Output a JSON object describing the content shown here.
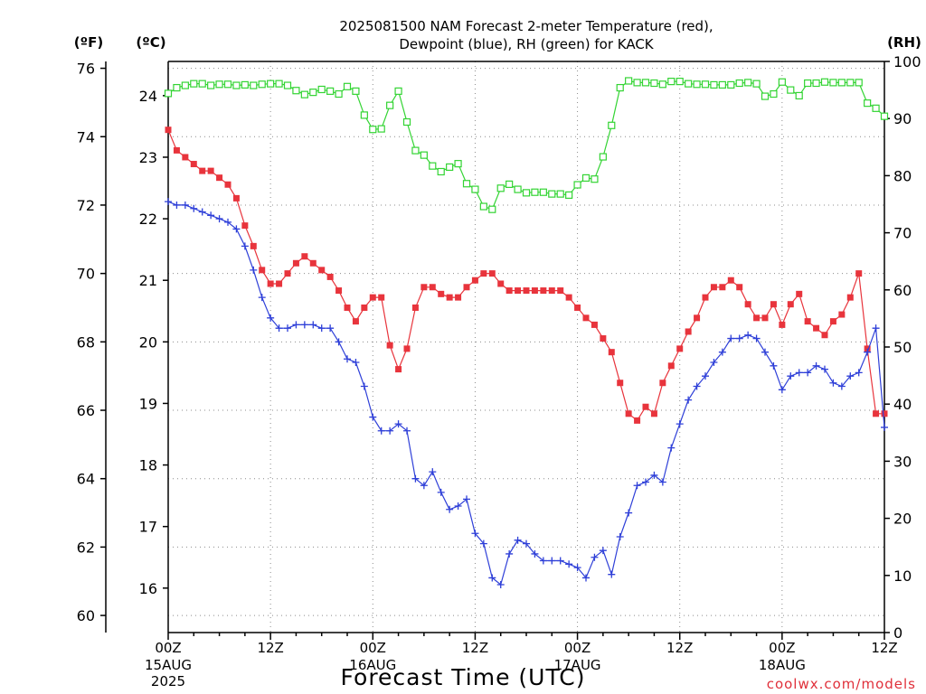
{
  "chart_data": {
    "type": "line",
    "title_line1": "2025081500 NAM Forecast 2-meter Temperature (red),",
    "title_line2": "Dewpoint (blue), RH (green) for KACK",
    "xlabel": "Forecast Time (UTC)",
    "credit": "coolwx.com/models",
    "left_outer_axis": {
      "unit": "(ºF)",
      "ticks": [
        60,
        62,
        64,
        66,
        68,
        70,
        72,
        74,
        76
      ]
    },
    "left_inner_axis": {
      "unit": "(ºC)",
      "ticks": [
        16,
        17,
        18,
        19,
        20,
        21,
        22,
        23,
        24
      ]
    },
    "right_axis": {
      "unit": "(RH)",
      "ticks": [
        0,
        10,
        20,
        30,
        40,
        50,
        60,
        70,
        80,
        90,
        100
      ],
      "ylim": [
        0,
        100
      ]
    },
    "ylim_f": [
      59.5,
      76.2
    ],
    "x_range_hours": [
      0,
      84
    ],
    "x_step_hours": 1,
    "x_ticks": [
      {
        "hour": 0,
        "label": "00Z",
        "sub1": "15AUG",
        "sub2": "2025"
      },
      {
        "hour": 12,
        "label": "12Z",
        "sub1": "",
        "sub2": ""
      },
      {
        "hour": 24,
        "label": "00Z",
        "sub1": "16AUG",
        "sub2": ""
      },
      {
        "hour": 36,
        "label": "12Z",
        "sub1": "",
        "sub2": ""
      },
      {
        "hour": 48,
        "label": "00Z",
        "sub1": "17AUG",
        "sub2": ""
      },
      {
        "hour": 60,
        "label": "12Z",
        "sub1": "",
        "sub2": ""
      },
      {
        "hour": 72,
        "label": "00Z",
        "sub1": "18AUG",
        "sub2": ""
      },
      {
        "hour": 84,
        "label": "12Z",
        "sub1": "",
        "sub2": ""
      }
    ],
    "grid": true,
    "series": [
      {
        "name": "Temperature",
        "unit": "F",
        "color": "#e8343c",
        "marker": "filled-square",
        "values": [
          74.2,
          73.6,
          73.4,
          73.2,
          73.0,
          73.0,
          72.8,
          72.6,
          72.2,
          71.4,
          70.8,
          70.1,
          69.7,
          69.7,
          70.0,
          70.3,
          70.5,
          70.3,
          70.1,
          69.9,
          69.5,
          69.0,
          68.6,
          69.0,
          69.3,
          69.3,
          67.9,
          67.2,
          67.8,
          69.0,
          69.6,
          69.6,
          69.4,
          69.3,
          69.3,
          69.6,
          69.8,
          70.0,
          70.0,
          69.7,
          69.5,
          69.5,
          69.5,
          69.5,
          69.5,
          69.5,
          69.5,
          69.3,
          69.0,
          68.7,
          68.5,
          68.1,
          67.7,
          66.8,
          65.9,
          65.7,
          66.1,
          65.9,
          66.8,
          67.3,
          67.8,
          68.3,
          68.7,
          69.3,
          69.6,
          69.6,
          69.8,
          69.6,
          69.1,
          68.7,
          68.7,
          69.1,
          68.5,
          69.1,
          69.4,
          68.6,
          68.4,
          68.2,
          68.6,
          68.8,
          69.3,
          70.0,
          67.8,
          65.9,
          65.9
        ]
      },
      {
        "name": "Dewpoint",
        "unit": "F",
        "color": "#2e3fd8",
        "marker": "plus",
        "values": [
          72.1,
          72.0,
          72.0,
          71.9,
          71.8,
          71.7,
          71.6,
          71.5,
          71.3,
          70.8,
          70.1,
          69.3,
          68.7,
          68.4,
          68.4,
          68.5,
          68.5,
          68.5,
          68.4,
          68.4,
          68.0,
          67.5,
          67.4,
          66.7,
          65.8,
          65.4,
          65.4,
          65.6,
          65.4,
          64.0,
          63.8,
          64.2,
          63.6,
          63.1,
          63.2,
          63.4,
          62.4,
          62.1,
          61.1,
          60.9,
          61.8,
          62.2,
          62.1,
          61.8,
          61.6,
          61.6,
          61.6,
          61.5,
          61.4,
          61.1,
          61.7,
          61.9,
          61.2,
          62.3,
          63.0,
          63.8,
          63.9,
          64.1,
          63.9,
          64.9,
          65.6,
          66.3,
          66.7,
          67.0,
          67.4,
          67.7,
          68.1,
          68.1,
          68.2,
          68.1,
          67.7,
          67.3,
          66.6,
          67.0,
          67.1,
          67.1,
          67.3,
          67.2,
          66.8,
          66.7,
          67.0,
          67.1,
          67.7,
          68.4,
          65.5
        ]
      },
      {
        "name": "RH",
        "unit": "%",
        "color": "#33d433",
        "marker": "open-square",
        "values": [
          94.4,
          95.4,
          95.8,
          96.1,
          96.1,
          95.8,
          96.0,
          96.0,
          95.8,
          95.9,
          95.8,
          96.0,
          96.1,
          96.1,
          95.8,
          94.9,
          94.2,
          94.6,
          95.1,
          94.8,
          94.3,
          95.6,
          94.8,
          90.6,
          88.1,
          88.2,
          92.3,
          94.8,
          89.4,
          84.4,
          83.6,
          81.7,
          80.7,
          81.5,
          82.1,
          78.6,
          77.6,
          74.6,
          74.1,
          77.8,
          78.5,
          77.6,
          77.0,
          77.1,
          77.1,
          76.8,
          76.8,
          76.6,
          78.4,
          79.6,
          79.4,
          83.3,
          88.8,
          95.4,
          96.6,
          96.3,
          96.3,
          96.2,
          96.0,
          96.5,
          96.5,
          96.1,
          96.0,
          96.0,
          95.9,
          95.9,
          95.9,
          96.2,
          96.3,
          96.1,
          93.9,
          94.3,
          96.4,
          95.0,
          94.0,
          96.2,
          96.2,
          96.4,
          96.3,
          96.3,
          96.3,
          96.3,
          92.7,
          91.8,
          90.4
        ]
      }
    ]
  }
}
